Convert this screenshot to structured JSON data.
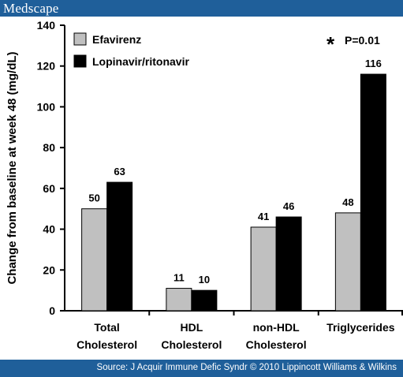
{
  "header": {
    "brand": "Medscape"
  },
  "footer": {
    "source": "Source: J Acquir Immune Defic Syndr © 2010 Lippincott Williams & Wilkins"
  },
  "chart_data": {
    "type": "bar",
    "title": "",
    "xlabel": "",
    "ylabel": "Change from baseline at week 48 (mg/dL)",
    "ylim": [
      0,
      140
    ],
    "yticks": [
      0,
      20,
      40,
      60,
      80,
      100,
      120,
      140
    ],
    "categories": [
      [
        "Total",
        "Cholesterol"
      ],
      [
        "HDL",
        "Cholesterol"
      ],
      [
        "non-HDL",
        "Cholesterol"
      ],
      [
        "Triglycerides"
      ]
    ],
    "series": [
      {
        "name": "Efavirenz",
        "color": "#c0c0c0",
        "values": [
          50,
          11,
          41,
          48
        ]
      },
      {
        "name": "Lopinavir/ritonavir",
        "color": "#000000",
        "values": [
          63,
          10,
          46,
          116
        ]
      }
    ],
    "legend_position": "top-left",
    "annotation": {
      "symbol": "*",
      "text": "P=0.01"
    },
    "grid": false
  }
}
